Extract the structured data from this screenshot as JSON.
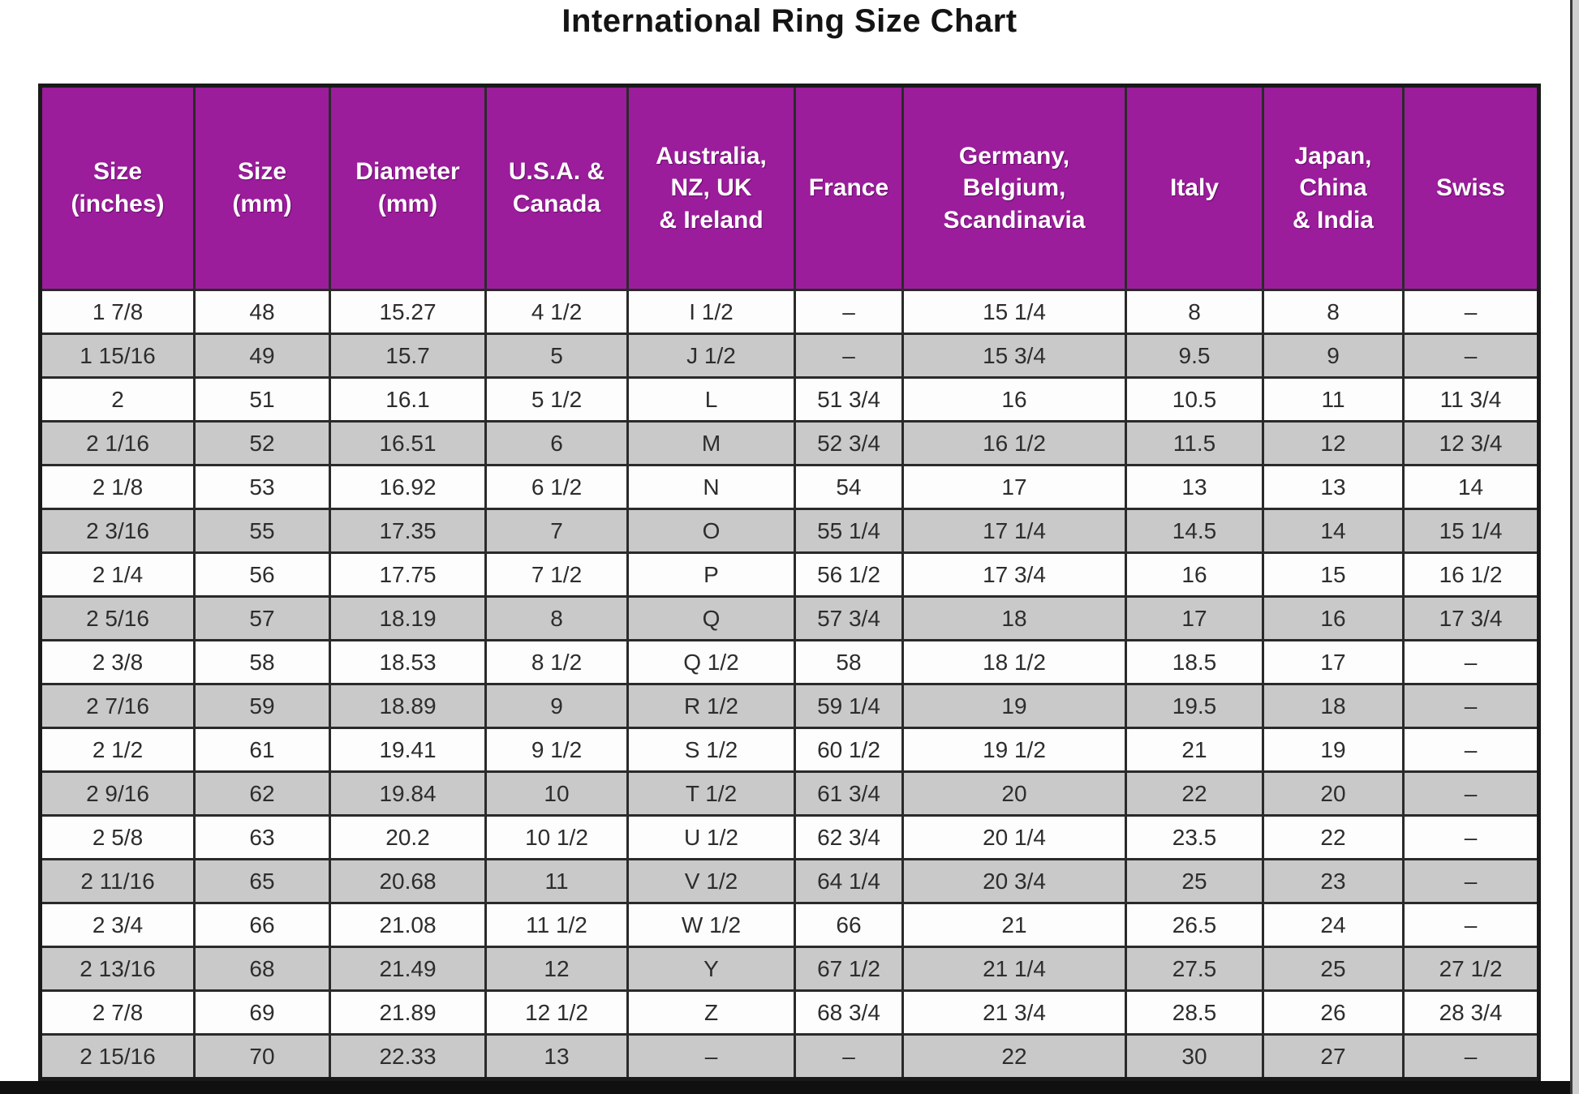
{
  "title": "International Ring Size Chart",
  "colors": {
    "header_bg": "#9b1d9b",
    "header_text": "#ffffff",
    "row_white": "#fdfdfd",
    "row_gray": "#c9c9c9",
    "title_color": "#141414"
  },
  "chart_data": {
    "type": "table",
    "title": "International Ring Size Chart",
    "columns": [
      {
        "key": "size-inches",
        "label": "Size\n(inches)"
      },
      {
        "key": "size-mm",
        "label": "Size\n(mm)"
      },
      {
        "key": "diameter-mm",
        "label": "Diameter\n(mm)"
      },
      {
        "key": "usa-canada",
        "label": "U.S.A. &\nCanada"
      },
      {
        "key": "australia-nz-uk-ireland",
        "label": "Australia,\nNZ, UK\n& Ireland"
      },
      {
        "key": "france",
        "label": "France"
      },
      {
        "key": "germany-belgium-scandinavia",
        "label": "Germany,\nBelgium,\nScandinavia"
      },
      {
        "key": "italy",
        "label": "Italy"
      },
      {
        "key": "japan-china-india",
        "label": "Japan,\nChina\n& India"
      },
      {
        "key": "swiss",
        "label": "Swiss"
      }
    ],
    "rows": [
      [
        "1 7/8",
        "48",
        "15.27",
        "4 1/2",
        "I 1/2",
        "–",
        "15 1/4",
        "8",
        "8",
        "–"
      ],
      [
        "1 15/16",
        "49",
        "15.7",
        "5",
        "J 1/2",
        "–",
        "15 3/4",
        "9.5",
        "9",
        "–"
      ],
      [
        "2",
        "51",
        "16.1",
        "5 1/2",
        "L",
        "51 3/4",
        "16",
        "10.5",
        "11",
        "11 3/4"
      ],
      [
        "2 1/16",
        "52",
        "16.51",
        "6",
        "M",
        "52 3/4",
        "16 1/2",
        "11.5",
        "12",
        "12 3/4"
      ],
      [
        "2 1/8",
        "53",
        "16.92",
        "6 1/2",
        "N",
        "54",
        "17",
        "13",
        "13",
        "14"
      ],
      [
        "2 3/16",
        "55",
        "17.35",
        "7",
        "O",
        "55 1/4",
        "17 1/4",
        "14.5",
        "14",
        "15 1/4"
      ],
      [
        "2 1/4",
        "56",
        "17.75",
        "7 1/2",
        "P",
        "56 1/2",
        "17 3/4",
        "16",
        "15",
        "16 1/2"
      ],
      [
        "2 5/16",
        "57",
        "18.19",
        "8",
        "Q",
        "57 3/4",
        "18",
        "17",
        "16",
        "17 3/4"
      ],
      [
        "2 3/8",
        "58",
        "18.53",
        "8 1/2",
        "Q 1/2",
        "58",
        "18 1/2",
        "18.5",
        "17",
        "–"
      ],
      [
        "2 7/16",
        "59",
        "18.89",
        "9",
        "R 1/2",
        "59 1/4",
        "19",
        "19.5",
        "18",
        "–"
      ],
      [
        "2 1/2",
        "61",
        "19.41",
        "9 1/2",
        "S 1/2",
        "60 1/2",
        "19 1/2",
        "21",
        "19",
        "–"
      ],
      [
        "2 9/16",
        "62",
        "19.84",
        "10",
        "T 1/2",
        "61 3/4",
        "20",
        "22",
        "20",
        "–"
      ],
      [
        "2 5/8",
        "63",
        "20.2",
        "10 1/2",
        "U 1/2",
        "62 3/4",
        "20 1/4",
        "23.5",
        "22",
        "–"
      ],
      [
        "2 11/16",
        "65",
        "20.68",
        "11",
        "V 1/2",
        "64 1/4",
        "20 3/4",
        "25",
        "23",
        "–"
      ],
      [
        "2 3/4",
        "66",
        "21.08",
        "11 1/2",
        "W 1/2",
        "66",
        "21",
        "26.5",
        "24",
        "–"
      ],
      [
        "2 13/16",
        "68",
        "21.49",
        "12",
        "Y",
        "67 1/2",
        "21 1/4",
        "27.5",
        "25",
        "27 1/2"
      ],
      [
        "2 7/8",
        "69",
        "21.89",
        "12 1/2",
        "Z",
        "68 3/4",
        "21 3/4",
        "28.5",
        "26",
        "28 3/4"
      ],
      [
        "2 15/16",
        "70",
        "22.33",
        "13",
        "–",
        "–",
        "22",
        "30",
        "27",
        "–"
      ]
    ]
  }
}
